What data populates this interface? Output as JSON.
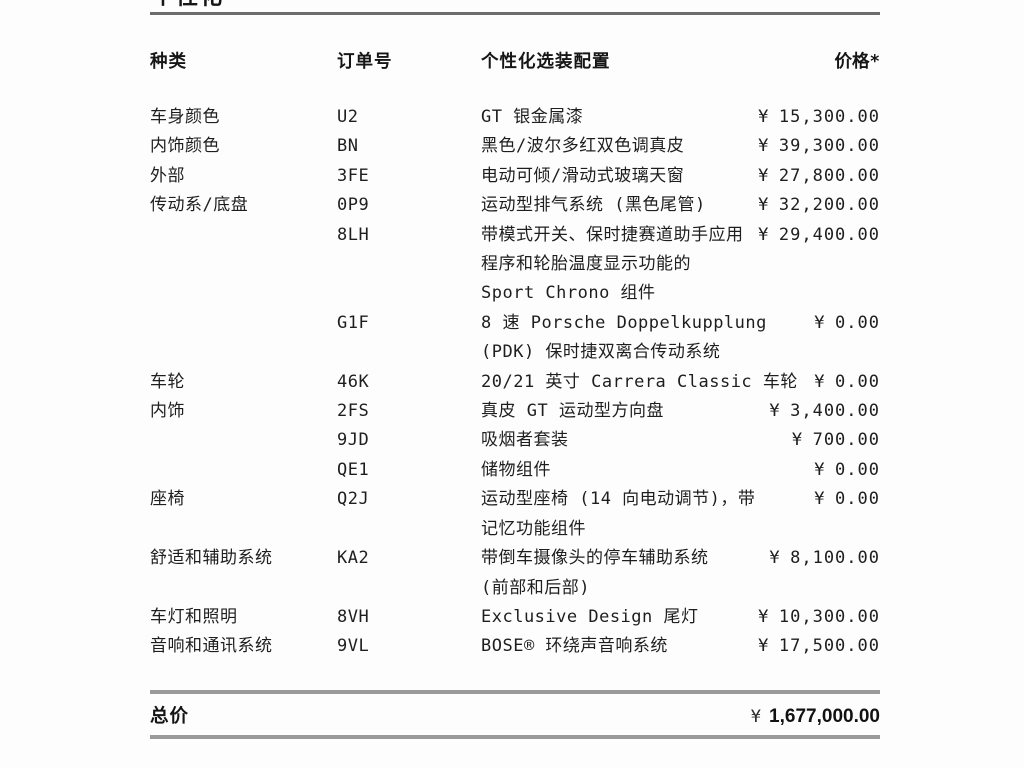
{
  "page": {
    "title": "个性化"
  },
  "table": {
    "headers": {
      "category": "种类",
      "code": "订单号",
      "option": "个性化选装配置",
      "price": "价格*"
    },
    "rows": [
      {
        "category": "车身颜色",
        "code": "U2",
        "lines": [
          "GT 银金属漆"
        ],
        "price": {
          "currency": "¥",
          "amount": "15,300.00"
        }
      },
      {
        "category": "内饰颜色",
        "code": "BN",
        "lines": [
          "黑色/波尔多红双色调真皮"
        ],
        "price": {
          "currency": "¥",
          "amount": "39,300.00"
        }
      },
      {
        "category": "外部",
        "code": "3FE",
        "lines": [
          "电动可倾/滑动式玻璃天窗"
        ],
        "price": {
          "currency": "¥",
          "amount": "27,800.00"
        }
      },
      {
        "category": "传动系/底盘",
        "code": "0P9",
        "lines": [
          "运动型排气系统 (黑色尾管)"
        ],
        "price": {
          "currency": "¥",
          "amount": "32,200.00"
        }
      },
      {
        "category": "",
        "code": "8LH",
        "lines": [
          "带模式开关、保时捷赛道助手应用",
          "程序和轮胎温度显示功能的",
          "Sport Chrono 组件"
        ],
        "price": {
          "currency": "¥",
          "amount": "29,400.00"
        }
      },
      {
        "category": "",
        "code": "G1F",
        "lines": [
          "8 速 Porsche Doppelkupplung",
          "(PDK) 保时捷双离合传动系统"
        ],
        "price": {
          "currency": "¥",
          "amount": "0.00"
        }
      },
      {
        "category": "车轮",
        "code": "46K",
        "lines": [
          "20/21 英寸 Carrera Classic 车轮"
        ],
        "price": {
          "currency": "¥",
          "amount": "0.00"
        }
      },
      {
        "category": "内饰",
        "code": "2FS",
        "lines": [
          "真皮 GT 运动型方向盘"
        ],
        "price": {
          "currency": "¥",
          "amount": "3,400.00"
        }
      },
      {
        "category": "",
        "code": "9JD",
        "lines": [
          "吸烟者套装"
        ],
        "price": {
          "currency": "¥",
          "amount": "700.00"
        }
      },
      {
        "category": "",
        "code": "QE1",
        "lines": [
          "储物组件"
        ],
        "price": {
          "currency": "¥",
          "amount": "0.00"
        }
      },
      {
        "category": "座椅",
        "code": "Q2J",
        "lines": [
          "运动型座椅 (14 向电动调节)，带",
          "记忆功能组件"
        ],
        "price": {
          "currency": "¥",
          "amount": "0.00"
        }
      },
      {
        "category": "舒适和辅助系统",
        "code": "KA2",
        "lines": [
          "带倒车摄像头的停车辅助系统",
          "(前部和后部)"
        ],
        "price": {
          "currency": "¥",
          "amount": "8,100.00"
        }
      },
      {
        "category": "车灯和照明",
        "code": "8VH",
        "lines": [
          "Exclusive Design 尾灯"
        ],
        "price": {
          "currency": "¥",
          "amount": "10,300.00"
        }
      },
      {
        "category": "音响和通讯系统",
        "code": "9VL",
        "lines": [
          "BOSE® 环绕声音响系统"
        ],
        "price": {
          "currency": "¥",
          "amount": "17,500.00"
        }
      }
    ]
  },
  "total": {
    "label": "总价",
    "currency": "¥",
    "amount": "1,677,000.00"
  }
}
